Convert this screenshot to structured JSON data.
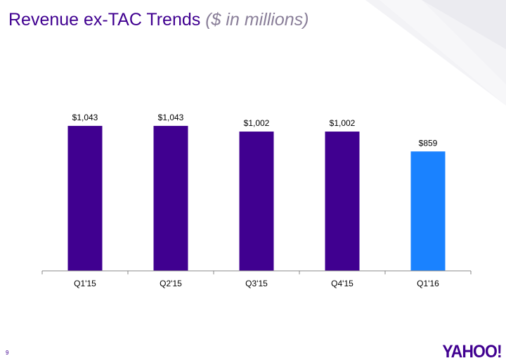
{
  "slide": {
    "title": "Revenue ex-TAC Trends",
    "title_unit": "($ in millions)",
    "page_number": "9",
    "logo_text": "YAHOO!"
  },
  "colors": {
    "title": "#400090",
    "title_unit": "#8a7f99",
    "bar_primary": "#400090",
    "bar_highlight": "#1a82ff",
    "axis": "#888888"
  },
  "chart_data": {
    "type": "bar",
    "categories": [
      "Q1'15",
      "Q2'15",
      "Q3'15",
      "Q4'15",
      "Q1'16"
    ],
    "values": [
      1043,
      1043,
      1002,
      1002,
      859
    ],
    "data_labels": [
      "$1,043",
      "$1,043",
      "$1,002",
      "$1,002",
      "$859"
    ],
    "highlight_index": 4,
    "title": "Revenue ex-TAC Trends",
    "subtitle": "($ in millions)",
    "xlabel": "",
    "ylabel": "",
    "ylim": [
      0,
      1240
    ],
    "grid": false,
    "legend": "none"
  }
}
